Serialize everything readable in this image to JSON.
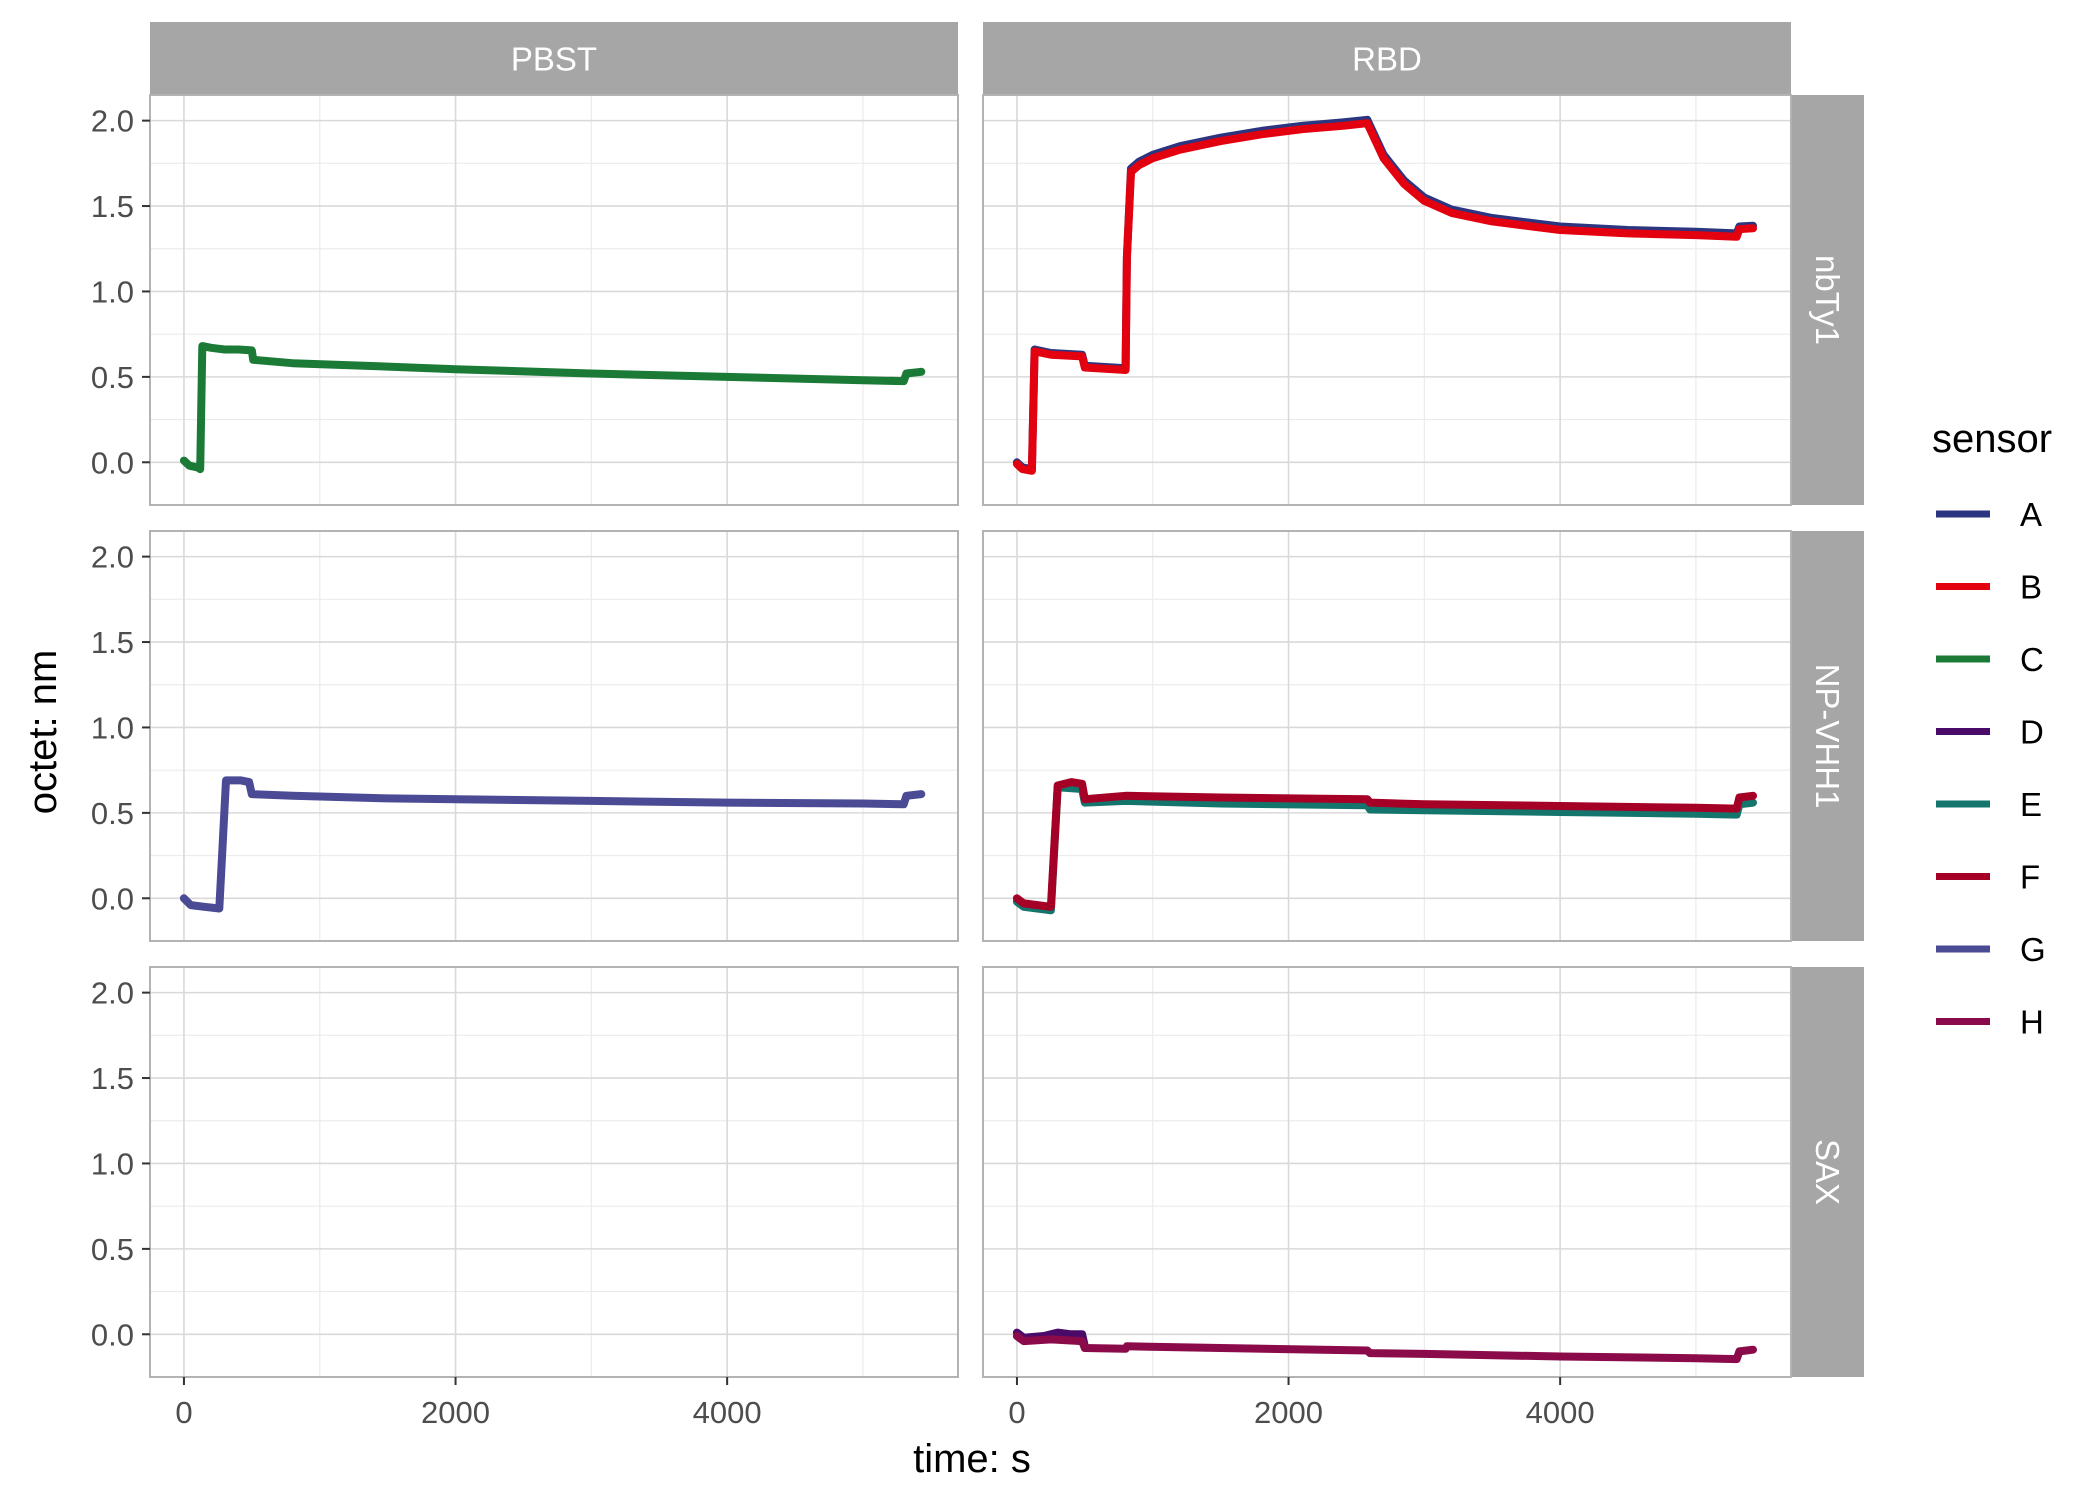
{
  "chart_data": {
    "type": "line",
    "facet_columns": [
      "PBST",
      "RBD"
    ],
    "facet_rows": [
      "nbTy1",
      "NP-VHH1",
      "SAX"
    ],
    "xlabel": "time: s",
    "ylabel": "octet: nm",
    "xlim": [
      -250,
      5700
    ],
    "ylim": [
      -0.25,
      2.15
    ],
    "x_ticks": [
      0,
      2000,
      4000
    ],
    "x_tick_labels": [
      "0",
      "2000",
      "4000"
    ],
    "y_ticks": [
      0,
      0.5,
      1,
      1.5,
      2
    ],
    "y_tick_labels": [
      "0.0",
      "0.5",
      "1.0",
      "1.5",
      "2.0"
    ],
    "grid": true,
    "legend": {
      "title": "sensor",
      "placement": "right",
      "entries": [
        {
          "label": "A",
          "color": "#2c3680"
        },
        {
          "label": "B",
          "color": "#e3000f"
        },
        {
          "label": "C",
          "color": "#1a7a36"
        },
        {
          "label": "D",
          "color": "#4a0a68"
        },
        {
          "label": "E",
          "color": "#14756d"
        },
        {
          "label": "F",
          "color": "#a50026"
        },
        {
          "label": "G",
          "color": "#4a4a95"
        },
        {
          "label": "H",
          "color": "#8a0a4a"
        }
      ]
    },
    "panels": [
      {
        "column": "PBST",
        "row": "nbTy1",
        "series": [
          {
            "sensor": "C",
            "points": [
              [
                0,
                0.01
              ],
              [
                40,
                -0.02
              ],
              [
                100,
                -0.03
              ],
              [
                120,
                -0.04
              ],
              [
                135,
                0.68
              ],
              [
                200,
                0.67
              ],
              [
                300,
                0.66
              ],
              [
                400,
                0.66
              ],
              [
                500,
                0.655
              ],
              [
                510,
                0.6
              ],
              [
                800,
                0.58
              ],
              [
                1500,
                0.56
              ],
              [
                2000,
                0.545
              ],
              [
                3000,
                0.52
              ],
              [
                4000,
                0.5
              ],
              [
                5000,
                0.48
              ],
              [
                5300,
                0.475
              ],
              [
                5320,
                0.52
              ],
              [
                5430,
                0.53
              ]
            ]
          }
        ]
      },
      {
        "column": "RBD",
        "row": "nbTy1",
        "series": [
          {
            "sensor": "A",
            "points": [
              [
                0,
                0.0
              ],
              [
                40,
                -0.03
              ],
              [
                110,
                -0.04
              ],
              [
                130,
                0.66
              ],
              [
                250,
                0.64
              ],
              [
                480,
                0.63
              ],
              [
                500,
                0.565
              ],
              [
                800,
                0.55
              ],
              [
                810,
                1.2
              ],
              [
                840,
                1.72
              ],
              [
                900,
                1.76
              ],
              [
                1000,
                1.8
              ],
              [
                1200,
                1.85
              ],
              [
                1500,
                1.9
              ],
              [
                1800,
                1.94
              ],
              [
                2100,
                1.97
              ],
              [
                2400,
                1.99
              ],
              [
                2580,
                2.005
              ],
              [
                2700,
                1.8
              ],
              [
                2850,
                1.65
              ],
              [
                3000,
                1.55
              ],
              [
                3200,
                1.48
              ],
              [
                3500,
                1.43
              ],
              [
                4000,
                1.38
              ],
              [
                4500,
                1.36
              ],
              [
                5000,
                1.35
              ],
              [
                5300,
                1.34
              ],
              [
                5320,
                1.38
              ],
              [
                5420,
                1.385
              ]
            ]
          },
          {
            "sensor": "B",
            "points": [
              [
                0,
                -0.01
              ],
              [
                40,
                -0.04
              ],
              [
                110,
                -0.05
              ],
              [
                130,
                0.65
              ],
              [
                250,
                0.63
              ],
              [
                480,
                0.62
              ],
              [
                500,
                0.555
              ],
              [
                800,
                0.54
              ],
              [
                810,
                1.2
              ],
              [
                840,
                1.7
              ],
              [
                900,
                1.74
              ],
              [
                1000,
                1.78
              ],
              [
                1200,
                1.83
              ],
              [
                1500,
                1.88
              ],
              [
                1800,
                1.92
              ],
              [
                2100,
                1.95
              ],
              [
                2400,
                1.97
              ],
              [
                2580,
                1.985
              ],
              [
                2700,
                1.78
              ],
              [
                2850,
                1.63
              ],
              [
                3000,
                1.53
              ],
              [
                3200,
                1.46
              ],
              [
                3500,
                1.41
              ],
              [
                4000,
                1.36
              ],
              [
                4500,
                1.34
              ],
              [
                5000,
                1.33
              ],
              [
                5300,
                1.32
              ],
              [
                5320,
                1.365
              ],
              [
                5420,
                1.37
              ]
            ]
          }
        ]
      },
      {
        "column": "PBST",
        "row": "NP-VHH1",
        "series": [
          {
            "sensor": "G",
            "points": [
              [
                0,
                0.0
              ],
              [
                50,
                -0.04
              ],
              [
                150,
                -0.05
              ],
              [
                260,
                -0.06
              ],
              [
                310,
                0.69
              ],
              [
                420,
                0.69
              ],
              [
                480,
                0.68
              ],
              [
                500,
                0.61
              ],
              [
                800,
                0.6
              ],
              [
                1500,
                0.585
              ],
              [
                2000,
                0.58
              ],
              [
                3000,
                0.57
              ],
              [
                4000,
                0.56
              ],
              [
                5000,
                0.555
              ],
              [
                5300,
                0.55
              ],
              [
                5320,
                0.6
              ],
              [
                5430,
                0.61
              ]
            ]
          }
        ]
      },
      {
        "column": "RBD",
        "row": "NP-VHH1",
        "series": [
          {
            "sensor": "E",
            "points": [
              [
                0,
                -0.02
              ],
              [
                50,
                -0.05
              ],
              [
                150,
                -0.06
              ],
              [
                250,
                -0.07
              ],
              [
                300,
                0.65
              ],
              [
                480,
                0.64
              ],
              [
                500,
                0.56
              ],
              [
                800,
                0.57
              ],
              [
                1500,
                0.555
              ],
              [
                2580,
                0.545
              ],
              [
                2600,
                0.52
              ],
              [
                3000,
                0.515
              ],
              [
                4000,
                0.505
              ],
              [
                5000,
                0.495
              ],
              [
                5300,
                0.49
              ],
              [
                5320,
                0.55
              ],
              [
                5420,
                0.56
              ]
            ]
          },
          {
            "sensor": "F",
            "points": [
              [
                0,
                0.0
              ],
              [
                50,
                -0.03
              ],
              [
                150,
                -0.04
              ],
              [
                250,
                -0.05
              ],
              [
                300,
                0.66
              ],
              [
                400,
                0.68
              ],
              [
                480,
                0.67
              ],
              [
                500,
                0.58
              ],
              [
                800,
                0.6
              ],
              [
                1500,
                0.59
              ],
              [
                2580,
                0.58
              ],
              [
                2600,
                0.56
              ],
              [
                3000,
                0.55
              ],
              [
                4000,
                0.54
              ],
              [
                5000,
                0.53
              ],
              [
                5300,
                0.525
              ],
              [
                5320,
                0.59
              ],
              [
                5420,
                0.6
              ]
            ]
          }
        ]
      },
      {
        "column": "PBST",
        "row": "SAX",
        "series": []
      },
      {
        "column": "RBD",
        "row": "SAX",
        "series": [
          {
            "sensor": "D",
            "points": [
              [
                0,
                0.01
              ],
              [
                50,
                -0.02
              ],
              [
                200,
                -0.01
              ],
              [
                250,
                0.0
              ],
              [
                300,
                0.01
              ],
              [
                400,
                0.0
              ],
              [
                480,
                0.0
              ],
              [
                500,
                -0.07
              ]
            ]
          },
          {
            "sensor": "H",
            "points": [
              [
                0,
                -0.01
              ],
              [
                50,
                -0.04
              ],
              [
                250,
                -0.03
              ],
              [
                480,
                -0.04
              ],
              [
                500,
                -0.08
              ],
              [
                800,
                -0.085
              ],
              [
                810,
                -0.07
              ],
              [
                1500,
                -0.08
              ],
              [
                2580,
                -0.095
              ],
              [
                2600,
                -0.11
              ],
              [
                3000,
                -0.115
              ],
              [
                4000,
                -0.13
              ],
              [
                5000,
                -0.14
              ],
              [
                5300,
                -0.145
              ],
              [
                5320,
                -0.1
              ],
              [
                5420,
                -0.09
              ]
            ]
          }
        ]
      }
    ]
  }
}
